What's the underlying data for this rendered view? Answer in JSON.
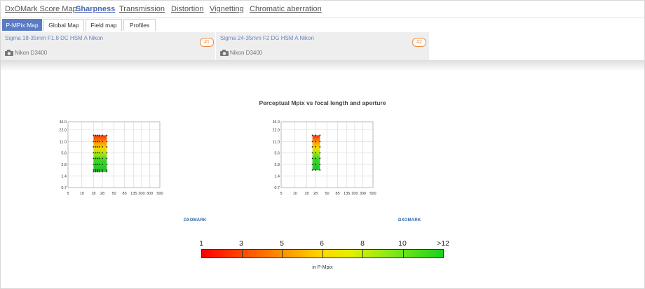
{
  "top_nav": [
    {
      "label": "DxOMark Score Map",
      "active": false
    },
    {
      "label": "Sharpness",
      "active": true
    },
    {
      "label": "Transmission",
      "active": false
    },
    {
      "label": "Distortion",
      "active": false
    },
    {
      "label": "Vignetting",
      "active": false
    },
    {
      "label": "Chromatic aberration",
      "active": false
    }
  ],
  "sub_tabs": [
    {
      "label": "P-MPix Map",
      "active": true
    },
    {
      "label": "Global Map",
      "active": false
    },
    {
      "label": "Field map",
      "active": false
    },
    {
      "label": "Profiles",
      "active": false
    }
  ],
  "lenses": [
    {
      "name": "Sigma 18-35mm F1.8 DC HSM A Nikon",
      "rank": "#1",
      "camera": "Nikon D3400"
    },
    {
      "name": "Sigma 24-35mm F2 DG HSM A Nikon",
      "rank": "#2",
      "camera": "Nikon D3400"
    }
  ],
  "chart_title": "Perceptual Mpix vs focal length and aperture",
  "chart_data": [
    {
      "type": "heatmap",
      "x_scale": "log",
      "y_scale": "log",
      "xticks": [
        5,
        10,
        18,
        28,
        50,
        85,
        135,
        200,
        300,
        500
      ],
      "yticks": [
        0.7,
        1.4,
        2.8,
        5.6,
        11.0,
        22.0,
        36.0
      ],
      "ytick_labels": [
        "0.7",
        "1.4",
        "2.8",
        "5.6",
        "11.0",
        "22.0",
        "36.0"
      ],
      "focal_range": [
        18,
        35
      ],
      "focal_samples": [
        18,
        20,
        22,
        24,
        28,
        35
      ],
      "aperture_range": [
        1.8,
        16
      ],
      "aperture_samples": [
        1.8,
        2,
        2.8,
        4,
        5.6,
        8,
        11,
        16
      ],
      "colorbar": "P-Mpix"
    },
    {
      "type": "heatmap",
      "x_scale": "log",
      "y_scale": "log",
      "xticks": [
        5,
        10,
        18,
        28,
        50,
        85,
        135,
        200,
        300,
        500
      ],
      "yticks": [
        0.7,
        1.4,
        2.8,
        5.6,
        11.0,
        22.0,
        36.0
      ],
      "ytick_labels": [
        "0.7",
        "1.4",
        "2.8",
        "5.6",
        "11.0",
        "22.0",
        "36.0"
      ],
      "focal_range": [
        24,
        35
      ],
      "focal_samples": [
        24,
        28,
        35
      ],
      "aperture_range": [
        2,
        16
      ],
      "aperture_samples": [
        2,
        2.8,
        4,
        5.6,
        8,
        11,
        16
      ],
      "colorbar": "P-Mpix"
    }
  ],
  "logo_text": "DXOMARK",
  "legend": {
    "labels": [
      "1",
      "3",
      "5",
      "6",
      "8",
      "10",
      ">12"
    ],
    "unit": "in P-Mpix"
  }
}
